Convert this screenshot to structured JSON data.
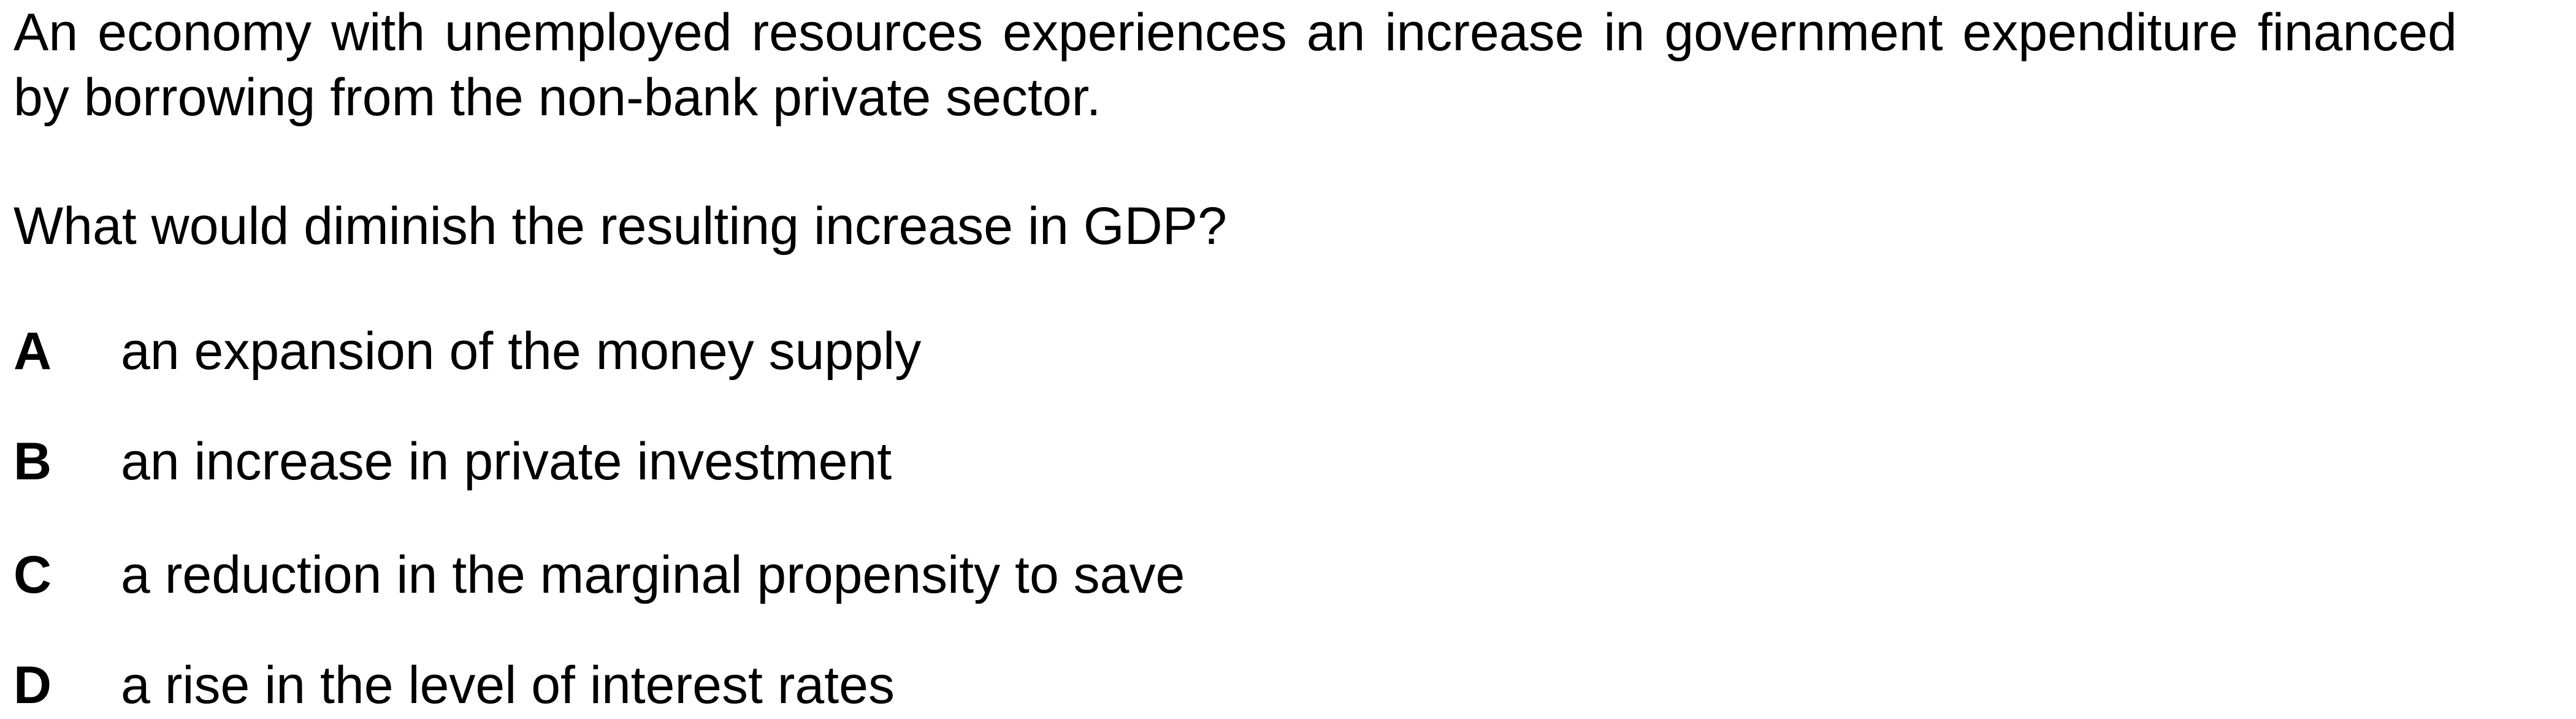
{
  "question": {
    "stem": "An economy with unemployed resources experiences an increase in government expenditure financed by borrowing from the non-bank private sector.",
    "prompt": "What would diminish the resulting increase in GDP?"
  },
  "options": [
    {
      "letter": "A",
      "text": "an expansion of the money supply"
    },
    {
      "letter": "B",
      "text": "an increase in private investment"
    },
    {
      "letter": "C",
      "text": "a reduction in the marginal propensity to save"
    },
    {
      "letter": "D",
      "text": "a rise in the level of interest rates"
    }
  ]
}
